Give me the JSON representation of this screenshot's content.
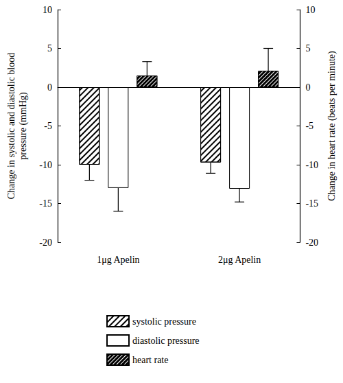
{
  "chart_data": {
    "type": "bar",
    "categories": [
      "1μg Apelin",
      "2μg Apelin"
    ],
    "ylabel": "Change in systolic and diastolic blood\npressure (mmHg)",
    "y2label": "Change in heart rate (beats per minute)",
    "ylim": [
      -20,
      10
    ],
    "yticks": [
      -20,
      -15,
      -10,
      -5,
      0,
      5,
      10
    ],
    "y2lim": [
      -20,
      10
    ],
    "y2ticks": [
      -20,
      -15,
      -10,
      -5,
      0,
      5,
      10
    ],
    "legend": "bottom",
    "series": [
      {
        "name": "systolic pressure",
        "color": "#ffffff",
        "values": [
          -10,
          -9.7
        ],
        "errors": [
          2,
          1.4
        ]
      },
      {
        "name": "diastolic pressure",
        "color": "#ffffff",
        "values": [
          -13,
          -13.1
        ],
        "errors": [
          3,
          1.7
        ]
      },
      {
        "name": "heart rate",
        "color": "#000000",
        "axis": "y2",
        "values": [
          1.5,
          2.1
        ],
        "errors": [
          1.8,
          2.9
        ]
      }
    ]
  }
}
